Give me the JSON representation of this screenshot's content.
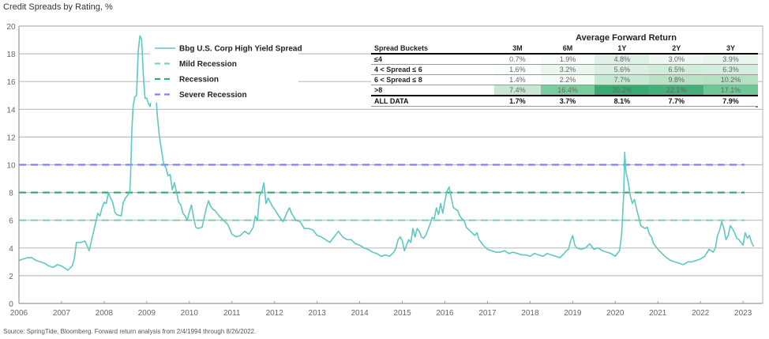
{
  "title": "Credit Spreads by Rating, %",
  "source": "Source: SpringTide, Bloomberg. Forward return analysis from 2/4/1994 through 8/26/2022.",
  "chart_data": {
    "type": "line",
    "title": "Credit Spreads by Rating, %",
    "xlabel": "",
    "ylabel": "",
    "xlim": [
      2006,
      2023.25
    ],
    "ylim": [
      0,
      20
    ],
    "grid": true,
    "legend_position": "top-center",
    "x_ticks": [
      "2006",
      "2007",
      "2008",
      "2009",
      "2010",
      "2011",
      "2012",
      "2013",
      "2014",
      "2015",
      "2016",
      "2017",
      "2018",
      "2019",
      "2020",
      "2021",
      "2022",
      "2023"
    ],
    "y_ticks": [
      "0",
      "2",
      "4",
      "6",
      "8",
      "10",
      "12",
      "14",
      "16",
      "18",
      "20"
    ],
    "series": [
      {
        "name": "Bbg U.S. Corp High Yield Spread",
        "color": "#5fc8c0",
        "style": "solid",
        "points": [
          [
            2006.0,
            3.1
          ],
          [
            2006.1,
            3.2
          ],
          [
            2006.2,
            3.3
          ],
          [
            2006.3,
            3.3
          ],
          [
            2006.4,
            3.1
          ],
          [
            2006.5,
            3.0
          ],
          [
            2006.6,
            2.9
          ],
          [
            2006.7,
            2.7
          ],
          [
            2006.8,
            2.6
          ],
          [
            2006.9,
            2.8
          ],
          [
            2007.0,
            2.7
          ],
          [
            2007.1,
            2.5
          ],
          [
            2007.15,
            2.4
          ],
          [
            2007.25,
            2.7
          ],
          [
            2007.3,
            3.2
          ],
          [
            2007.35,
            4.4
          ],
          [
            2007.45,
            4.4
          ],
          [
            2007.55,
            4.5
          ],
          [
            2007.65,
            3.8
          ],
          [
            2007.7,
            4.5
          ],
          [
            2007.8,
            5.8
          ],
          [
            2007.85,
            6.5
          ],
          [
            2007.9,
            6.3
          ],
          [
            2007.95,
            6.9
          ],
          [
            2008.0,
            7.3
          ],
          [
            2008.05,
            7.2
          ],
          [
            2008.1,
            8.0
          ],
          [
            2008.15,
            7.6
          ],
          [
            2008.2,
            7.3
          ],
          [
            2008.25,
            6.6
          ],
          [
            2008.3,
            6.4
          ],
          [
            2008.4,
            6.3
          ],
          [
            2008.45,
            7.3
          ],
          [
            2008.5,
            7.6
          ],
          [
            2008.55,
            7.8
          ],
          [
            2008.6,
            8.0
          ],
          [
            2008.62,
            9.0
          ],
          [
            2008.65,
            12.5
          ],
          [
            2008.68,
            14.2
          ],
          [
            2008.72,
            14.9
          ],
          [
            2008.76,
            15.0
          ],
          [
            2008.8,
            18.2
          ],
          [
            2008.84,
            19.3
          ],
          [
            2008.88,
            19.0
          ],
          [
            2008.92,
            16.5
          ],
          [
            2008.96,
            14.8
          ],
          [
            2009.0,
            14.8
          ],
          [
            2009.04,
            14.4
          ],
          [
            2009.08,
            14.2
          ],
          [
            2009.12,
            15.5
          ],
          [
            2009.16,
            16.5
          ],
          [
            2009.2,
            15.8
          ],
          [
            2009.25,
            13.5
          ],
          [
            2009.3,
            12.0
          ],
          [
            2009.35,
            11.0
          ],
          [
            2009.4,
            10.0
          ],
          [
            2009.45,
            9.8
          ],
          [
            2009.5,
            9.2
          ],
          [
            2009.55,
            9.3
          ],
          [
            2009.6,
            8.2
          ],
          [
            2009.65,
            8.7
          ],
          [
            2009.7,
            8.0
          ],
          [
            2009.75,
            7.3
          ],
          [
            2009.8,
            7.1
          ],
          [
            2009.85,
            6.5
          ],
          [
            2009.9,
            6.3
          ],
          [
            2009.95,
            6.0
          ],
          [
            2010.0,
            6.6
          ],
          [
            2010.05,
            7.1
          ],
          [
            2010.1,
            6.2
          ],
          [
            2010.15,
            5.5
          ],
          [
            2010.2,
            5.4
          ],
          [
            2010.3,
            5.5
          ],
          [
            2010.4,
            6.9
          ],
          [
            2010.45,
            7.4
          ],
          [
            2010.5,
            7.0
          ],
          [
            2010.55,
            6.8
          ],
          [
            2010.6,
            6.7
          ],
          [
            2010.65,
            6.5
          ],
          [
            2010.7,
            6.3
          ],
          [
            2010.8,
            6.0
          ],
          [
            2010.9,
            5.7
          ],
          [
            2011.0,
            5.0
          ],
          [
            2011.1,
            4.8
          ],
          [
            2011.2,
            4.9
          ],
          [
            2011.3,
            5.2
          ],
          [
            2011.4,
            5.0
          ],
          [
            2011.5,
            5.5
          ],
          [
            2011.55,
            6.3
          ],
          [
            2011.6,
            6.0
          ],
          [
            2011.65,
            7.8
          ],
          [
            2011.7,
            8.0
          ],
          [
            2011.75,
            8.7
          ],
          [
            2011.8,
            7.2
          ],
          [
            2011.85,
            7.6
          ],
          [
            2011.9,
            7.3
          ],
          [
            2011.95,
            7.0
          ],
          [
            2012.0,
            6.8
          ],
          [
            2012.1,
            6.3
          ],
          [
            2012.2,
            5.9
          ],
          [
            2012.3,
            6.6
          ],
          [
            2012.35,
            6.9
          ],
          [
            2012.4,
            6.5
          ],
          [
            2012.5,
            6.0
          ],
          [
            2012.6,
            5.9
          ],
          [
            2012.7,
            5.4
          ],
          [
            2012.8,
            5.4
          ],
          [
            2012.9,
            5.3
          ],
          [
            2013.0,
            4.9
          ],
          [
            2013.1,
            4.8
          ],
          [
            2013.2,
            4.6
          ],
          [
            2013.3,
            4.4
          ],
          [
            2013.4,
            4.8
          ],
          [
            2013.5,
            5.2
          ],
          [
            2013.6,
            4.8
          ],
          [
            2013.7,
            4.6
          ],
          [
            2013.8,
            4.6
          ],
          [
            2013.9,
            4.3
          ],
          [
            2014.0,
            4.2
          ],
          [
            2014.1,
            4.0
          ],
          [
            2014.2,
            3.9
          ],
          [
            2014.3,
            3.7
          ],
          [
            2014.4,
            3.6
          ],
          [
            2014.5,
            3.4
          ],
          [
            2014.6,
            3.5
          ],
          [
            2014.7,
            3.4
          ],
          [
            2014.8,
            3.7
          ],
          [
            2014.85,
            4.0
          ],
          [
            2014.9,
            4.6
          ],
          [
            2014.95,
            4.8
          ],
          [
            2015.0,
            4.5
          ],
          [
            2015.05,
            3.8
          ],
          [
            2015.1,
            4.2
          ],
          [
            2015.15,
            4.6
          ],
          [
            2015.2,
            4.4
          ],
          [
            2015.25,
            5.4
          ],
          [
            2015.3,
            4.8
          ],
          [
            2015.35,
            5.4
          ],
          [
            2015.4,
            5.2
          ],
          [
            2015.45,
            4.8
          ],
          [
            2015.5,
            4.7
          ],
          [
            2015.55,
            4.9
          ],
          [
            2015.6,
            5.3
          ],
          [
            2015.65,
            5.7
          ],
          [
            2015.7,
            6.2
          ],
          [
            2015.75,
            6.1
          ],
          [
            2015.8,
            6.9
          ],
          [
            2015.85,
            6.4
          ],
          [
            2015.9,
            7.2
          ],
          [
            2015.95,
            6.5
          ],
          [
            2016.0,
            7.4
          ],
          [
            2016.05,
            8.1
          ],
          [
            2016.1,
            8.4
          ],
          [
            2016.15,
            7.6
          ],
          [
            2016.2,
            6.9
          ],
          [
            2016.3,
            6.7
          ],
          [
            2016.35,
            6.3
          ],
          [
            2016.4,
            6.1
          ],
          [
            2016.45,
            6.0
          ],
          [
            2016.5,
            5.5
          ],
          [
            2016.6,
            5.2
          ],
          [
            2016.7,
            4.9
          ],
          [
            2016.75,
            5.1
          ],
          [
            2016.8,
            4.6
          ],
          [
            2016.9,
            4.2
          ],
          [
            2017.0,
            3.9
          ],
          [
            2017.1,
            3.8
          ],
          [
            2017.2,
            3.7
          ],
          [
            2017.3,
            3.7
          ],
          [
            2017.4,
            3.8
          ],
          [
            2017.5,
            3.6
          ],
          [
            2017.6,
            3.7
          ],
          [
            2017.7,
            3.6
          ],
          [
            2017.8,
            3.5
          ],
          [
            2017.9,
            3.5
          ],
          [
            2018.0,
            3.4
          ],
          [
            2018.1,
            3.6
          ],
          [
            2018.2,
            3.5
          ],
          [
            2018.3,
            3.4
          ],
          [
            2018.4,
            3.6
          ],
          [
            2018.5,
            3.5
          ],
          [
            2018.6,
            3.4
          ],
          [
            2018.7,
            3.3
          ],
          [
            2018.8,
            3.6
          ],
          [
            2018.85,
            3.8
          ],
          [
            2018.9,
            3.9
          ],
          [
            2018.95,
            4.5
          ],
          [
            2019.0,
            4.9
          ],
          [
            2019.05,
            4.2
          ],
          [
            2019.1,
            4.0
          ],
          [
            2019.2,
            3.9
          ],
          [
            2019.3,
            4.0
          ],
          [
            2019.4,
            4.3
          ],
          [
            2019.5,
            3.9
          ],
          [
            2019.6,
            4.0
          ],
          [
            2019.7,
            3.8
          ],
          [
            2019.8,
            3.7
          ],
          [
            2019.9,
            3.6
          ],
          [
            2020.0,
            3.4
          ],
          [
            2020.05,
            3.6
          ],
          [
            2020.1,
            3.8
          ],
          [
            2020.15,
            5.0
          ],
          [
            2020.2,
            8.0
          ],
          [
            2020.22,
            10.9
          ],
          [
            2020.25,
            9.5
          ],
          [
            2020.3,
            8.8
          ],
          [
            2020.35,
            7.8
          ],
          [
            2020.4,
            7.2
          ],
          [
            2020.45,
            7.5
          ],
          [
            2020.5,
            6.8
          ],
          [
            2020.55,
            6.2
          ],
          [
            2020.6,
            5.6
          ],
          [
            2020.7,
            5.4
          ],
          [
            2020.75,
            5.5
          ],
          [
            2020.8,
            5.0
          ],
          [
            2020.85,
            4.8
          ],
          [
            2020.9,
            4.3
          ],
          [
            2021.0,
            3.9
          ],
          [
            2021.1,
            3.6
          ],
          [
            2021.2,
            3.3
          ],
          [
            2021.3,
            3.1
          ],
          [
            2021.4,
            3.0
          ],
          [
            2021.5,
            2.9
          ],
          [
            2021.6,
            2.8
          ],
          [
            2021.7,
            3.0
          ],
          [
            2021.8,
            3.0
          ],
          [
            2021.9,
            3.1
          ],
          [
            2022.0,
            3.2
          ],
          [
            2022.1,
            3.4
          ],
          [
            2022.2,
            3.9
          ],
          [
            2022.3,
            3.7
          ],
          [
            2022.35,
            4.0
          ],
          [
            2022.4,
            4.9
          ],
          [
            2022.45,
            5.3
          ],
          [
            2022.5,
            5.9
          ],
          [
            2022.55,
            5.4
          ],
          [
            2022.6,
            4.6
          ],
          [
            2022.65,
            4.9
          ],
          [
            2022.7,
            5.6
          ],
          [
            2022.75,
            5.4
          ],
          [
            2022.8,
            5.1
          ],
          [
            2022.85,
            4.7
          ],
          [
            2022.9,
            4.6
          ],
          [
            2022.95,
            4.4
          ],
          [
            2023.0,
            4.2
          ],
          [
            2023.05,
            5.1
          ],
          [
            2023.1,
            4.7
          ],
          [
            2023.15,
            4.9
          ],
          [
            2023.2,
            4.4
          ],
          [
            2023.25,
            4.1
          ]
        ]
      },
      {
        "name": "Mild Recession",
        "color": "#7fd6a8",
        "style": "dashed",
        "value": 6
      },
      {
        "name": "Recession",
        "color": "#3aaa74",
        "style": "dashed",
        "value": 8
      },
      {
        "name": "Severe Recession",
        "color": "#8080ff",
        "style": "dashed",
        "value": 10
      }
    ]
  },
  "table": {
    "title": "Average Forward Return",
    "columns": [
      "Spread Buckets",
      "3M",
      "6M",
      "1Y",
      "2Y",
      "3Y"
    ],
    "rows": [
      {
        "label": "≤4",
        "values": [
          "0.7%",
          "1.9%",
          "4.8%",
          "3.0%",
          "3.9%"
        ],
        "shades": [
          "#ffffff",
          "#f8fcfa",
          "#dff1e6",
          "#f0f8f3",
          "#e8f5ed"
        ]
      },
      {
        "label": "4 < Spread ≤ 6",
        "values": [
          "1.6%",
          "3.2%",
          "5.6%",
          "6.5%",
          "6.3%"
        ],
        "shades": [
          "#fbfdfc",
          "#eaf6ef",
          "#d9efe1",
          "#d2ecdb",
          "#d4edde"
        ]
      },
      {
        "label": "6 < Spread ≤ 8",
        "values": [
          "1.4%",
          "2.2%",
          "7.7%",
          "9.8%",
          "10.2%"
        ],
        "shades": [
          "#fcfefd",
          "#f4faf6",
          "#c9e8d4",
          "#b8e1c6",
          "#b5e0c4"
        ]
      },
      {
        "label": ">8",
        "values": [
          "7.4%",
          "16.4%",
          "30.2%",
          "22.1%",
          "17.1%"
        ],
        "shades": [
          "#c9e8d4",
          "#7ccb9d",
          "#3aaa72",
          "#45ae79",
          "#73c795"
        ]
      }
    ],
    "all_data": {
      "label": "ALL DATA",
      "values": [
        "1.7%",
        "3.7%",
        "8.1%",
        "7.7%",
        "7.9%"
      ]
    }
  }
}
